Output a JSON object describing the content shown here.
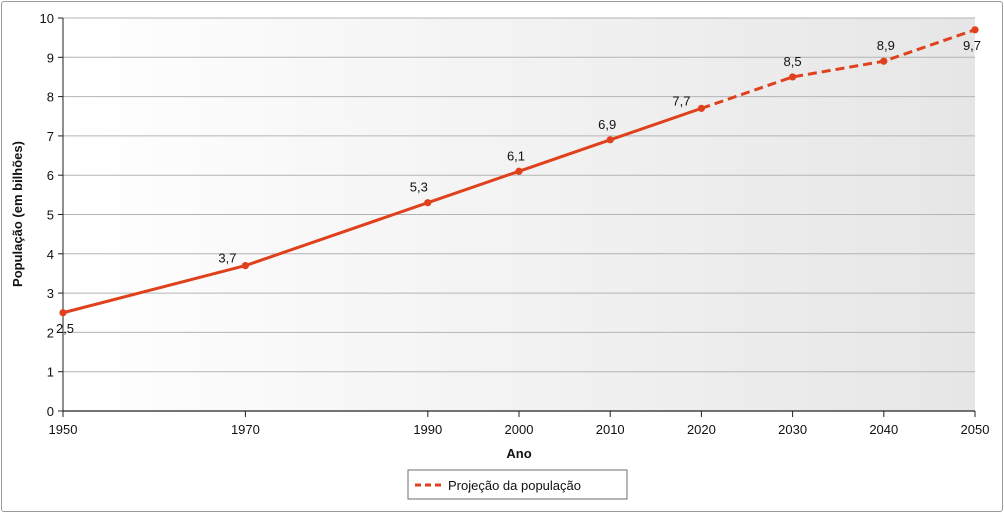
{
  "chart_data": {
    "type": "line",
    "xlabel": "Ano",
    "ylabel": "População (em bilhões)",
    "ylim": [
      0,
      10
    ],
    "xlim": [
      1950,
      2050
    ],
    "yticks": [
      "0",
      "1",
      "2",
      "3",
      "4",
      "5",
      "6",
      "7",
      "8",
      "9",
      "10"
    ],
    "xticks": [
      "1950",
      "1970",
      "1990",
      "2000",
      "2010",
      "2020",
      "2030",
      "2040",
      "2050"
    ],
    "grid": "horizontal",
    "legend_position": "bottom-center",
    "series": [
      {
        "style": "solid",
        "x": [
          1950,
          1970,
          1990,
          2000,
          2010,
          2020
        ],
        "y": [
          2.5,
          3.7,
          5.3,
          6.1,
          6.9,
          7.7
        ],
        "labels": [
          "2,5",
          "3,7",
          "5,3",
          "6,1",
          "6,9",
          "7,7"
        ]
      },
      {
        "name": "Projeção da população",
        "style": "dashed",
        "x": [
          2020,
          2030,
          2040,
          2050
        ],
        "y": [
          7.7,
          8.5,
          8.9,
          9.7
        ],
        "labels": [
          "",
          "8,5",
          "8,9",
          "9,7"
        ]
      }
    ],
    "colors": {
      "line": "#e0401c",
      "plot_bg": "#eeeeee",
      "grid": "#b4b4b4"
    }
  }
}
